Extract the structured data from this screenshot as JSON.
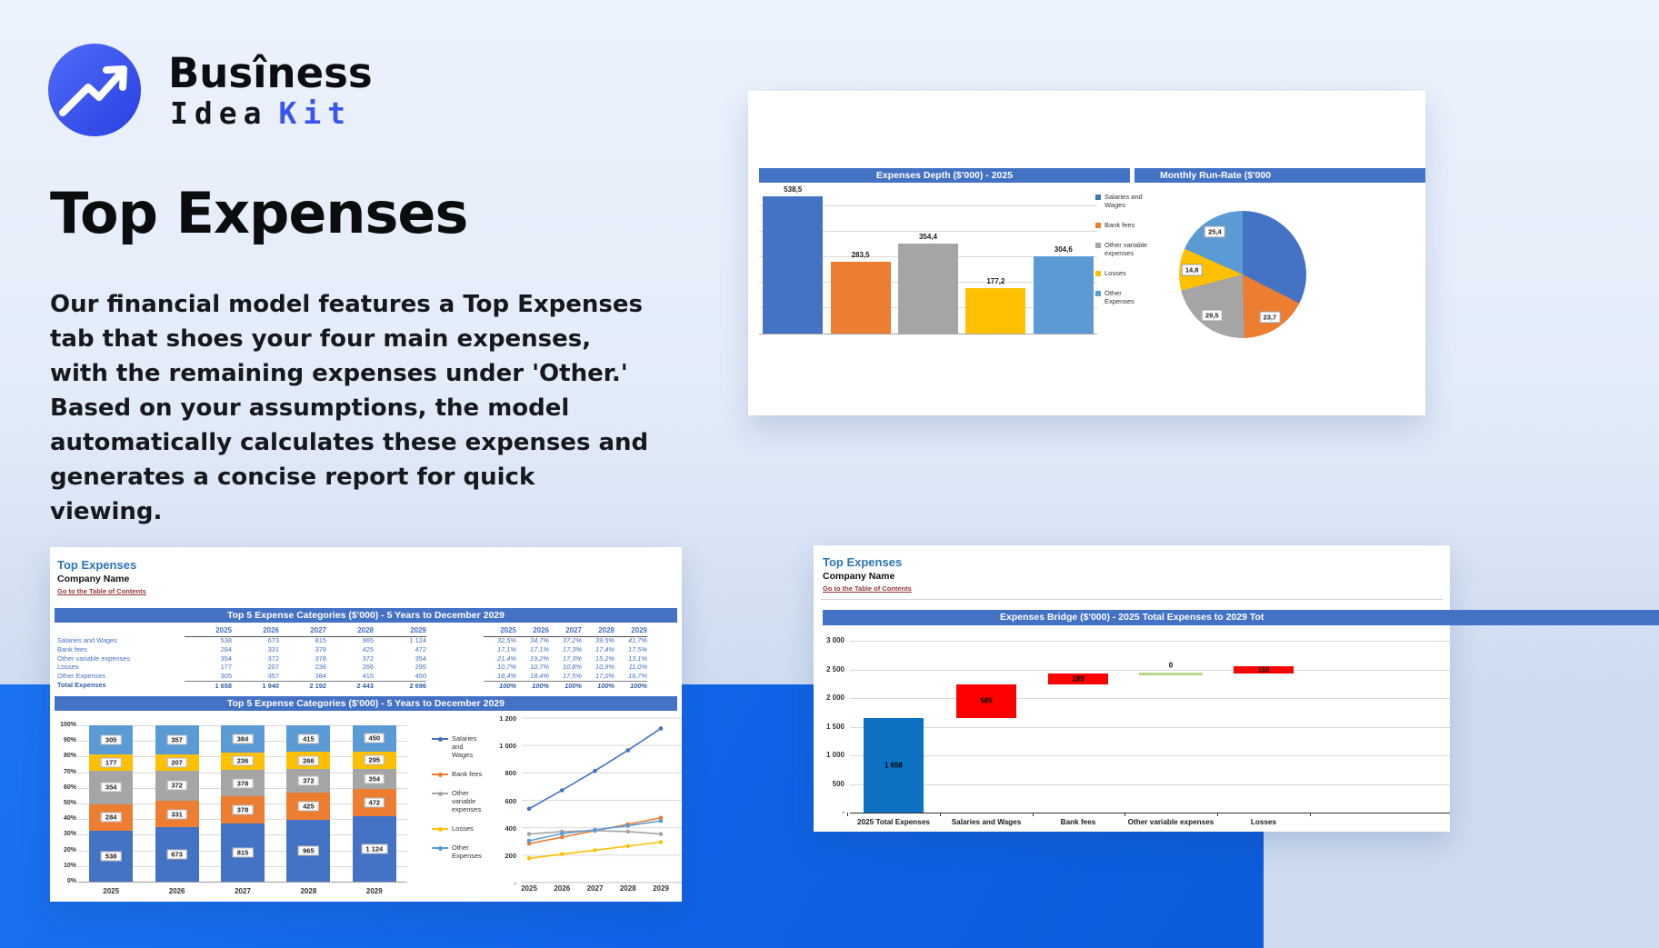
{
  "brand": {
    "line1": "Busîness",
    "line2_dark": "Idea",
    "line2_accent": "Kit"
  },
  "hero": {
    "title": "Top Expenses",
    "paragraph": "Our financial model features a Top Expenses tab that shoes your four main expenses, with the remaining expenses under 'Other.' Based on your assumptions, the model automatically calculates these expenses and generates a concise report for quick viewing."
  },
  "cards": {
    "top_right": {
      "header_left": "Expenses Depth ($'000) - 2025",
      "header_right": "Monthly Run-Rate ($'000"
    },
    "sheet1": {
      "title": "Top Expenses",
      "company": "Company Name",
      "link": "Go to the Table of Contents",
      "table_header": "Top 5 Expense Categories ($'000) - 5 Years to December 2029",
      "chart_header": "Top 5 Expense Categories ($'000) - 5 Years to December 2029",
      "years": [
        "2025",
        "2026",
        "2027",
        "2028",
        "2029"
      ],
      "rows": [
        {
          "label": "Salaries and Wages",
          "values": [
            "538",
            "673",
            "815",
            "965",
            "1 124"
          ],
          "pcts": [
            "32,5%",
            "34,7%",
            "37,2%",
            "39,5%",
            "41,7%"
          ]
        },
        {
          "label": "Bank fees",
          "values": [
            "284",
            "331",
            "378",
            "425",
            "472"
          ],
          "pcts": [
            "17,1%",
            "17,1%",
            "17,3%",
            "17,4%",
            "17,5%"
          ]
        },
        {
          "label": "Other variable expenses",
          "values": [
            "354",
            "372",
            "378",
            "372",
            "354"
          ],
          "pcts": [
            "21,4%",
            "19,2%",
            "17,3%",
            "15,2%",
            "13,1%"
          ]
        },
        {
          "label": "Losses",
          "values": [
            "177",
            "207",
            "236",
            "266",
            "295"
          ],
          "pcts": [
            "10,7%",
            "10,7%",
            "10,8%",
            "10,9%",
            "11,0%"
          ]
        },
        {
          "label": "Other Expenses",
          "values": [
            "305",
            "357",
            "384",
            "415",
            "450"
          ],
          "pcts": [
            "18,4%",
            "18,4%",
            "17,5%",
            "17,0%",
            "16,7%"
          ]
        }
      ],
      "total": {
        "label": "Total Expenses",
        "values": [
          "1 658",
          "1 940",
          "2 192",
          "2 443",
          "2 696"
        ],
        "pcts": [
          "100%",
          "100%",
          "100%",
          "100%",
          "100%"
        ]
      }
    },
    "sheet2": {
      "title": "Top Expenses",
      "company": "Company Name",
      "link": "Go to the Table of Contents",
      "chart_header": "Expenses Bridge ($'000) - 2025 Total Expenses to 2029 Tot"
    }
  },
  "colors": {
    "accent": "#3b55f0",
    "band_blue": "#1266e9",
    "header_bar": "#4472c4",
    "sheet_title_blue": "#2e75b6",
    "link_maroon": "#943634",
    "series": {
      "salaries": "#4472c4",
      "bank_fees": "#ed7d31",
      "other_variable": "#a5a5a5",
      "losses": "#ffc000",
      "other_expenses": "#5b9bd5"
    },
    "waterfall": {
      "start": "#0d72c4",
      "increase": "#fe0000",
      "zero": "#b9d78a"
    }
  },
  "chart_data": [
    {
      "id": "expenses_depth",
      "type": "bar",
      "title": "Expenses Depth ($'000) - 2025",
      "categories": [
        "Salaries and Wages",
        "Bank fees",
        "Other variable expenses",
        "Losses",
        "Other Expenses"
      ],
      "values": [
        538.5,
        283.5,
        354.4,
        177.2,
        304.6
      ],
      "labels": [
        "538,5",
        "283,5",
        "354,4",
        "177,2",
        "304,6"
      ],
      "color_keys": [
        "salaries",
        "bank_fees",
        "other_variable",
        "losses",
        "other_expenses"
      ],
      "ylim": [
        0,
        560
      ],
      "grid_step": 100,
      "legend_position": "right",
      "legend": [
        "Salaries and Wages",
        "Bank fees",
        "Other variable expenses",
        "Losses",
        "Other Expenses"
      ]
    },
    {
      "id": "monthly_run_rate",
      "type": "pie",
      "title": "Monthly Run-Rate ($'000",
      "categories": [
        "Salaries and Wages",
        "Bank fees",
        "Other variable expenses",
        "Losses",
        "Other Expenses"
      ],
      "values": [
        44.9,
        23.7,
        29.5,
        14.8,
        25.4
      ],
      "labels": [
        "",
        "23,7",
        "29,5",
        "14,8",
        "25,4"
      ],
      "color_keys": [
        "salaries",
        "bank_fees",
        "other_variable",
        "losses",
        "other_expenses"
      ]
    },
    {
      "id": "top5_stacked",
      "type": "bar",
      "stacked": true,
      "percent_axis": true,
      "title": "Top 5 Expense Categories ($'000) - 5 Years to December 2029",
      "categories": [
        "2025",
        "2026",
        "2027",
        "2028",
        "2029"
      ],
      "totals": [
        1658,
        1940,
        2192,
        2443,
        2696
      ],
      "series": [
        {
          "name": "Salaries and Wages",
          "color_key": "salaries",
          "values": [
            538,
            673,
            815,
            965,
            1124
          ],
          "labels": [
            "538",
            "673",
            "815",
            "965",
            "1 124"
          ]
        },
        {
          "name": "Bank fees",
          "color_key": "bank_fees",
          "values": [
            284,
            331,
            378,
            425,
            472
          ],
          "labels": [
            "284",
            "331",
            "378",
            "425",
            "472"
          ]
        },
        {
          "name": "Other variable expenses",
          "color_key": "other_variable",
          "values": [
            354,
            372,
            378,
            372,
            354
          ],
          "labels": [
            "354",
            "372",
            "378",
            "372",
            "354"
          ]
        },
        {
          "name": "Losses",
          "color_key": "losses",
          "values": [
            177,
            207,
            236,
            266,
            295
          ],
          "labels": [
            "177",
            "207",
            "236",
            "266",
            "295"
          ]
        },
        {
          "name": "Other Expenses",
          "color_key": "other_expenses",
          "values": [
            305,
            357,
            384,
            415,
            450
          ],
          "labels": [
            "305",
            "357",
            "384",
            "415",
            "450"
          ]
        }
      ],
      "yticks": [
        "0%",
        "10%",
        "20%",
        "30%",
        "40%",
        "50%",
        "60%",
        "70%",
        "80%",
        "90%",
        "100%"
      ],
      "legend": [
        "Salaries and Wages",
        "Bank fees",
        "Other variable expenses",
        "Losses",
        "Other Expenses"
      ],
      "legend_position": "right"
    },
    {
      "id": "top5_lines",
      "type": "line",
      "x": [
        "2025",
        "2026",
        "2027",
        "2028",
        "2029"
      ],
      "series": [
        {
          "name": "Salaries and Wages",
          "color_key": "salaries",
          "values": [
            538,
            673,
            815,
            965,
            1124
          ]
        },
        {
          "name": "Bank fees",
          "color_key": "bank_fees",
          "values": [
            284,
            331,
            378,
            425,
            472
          ]
        },
        {
          "name": "Other variable expenses",
          "color_key": "other_variable",
          "values": [
            354,
            372,
            378,
            372,
            354
          ]
        },
        {
          "name": "Losses",
          "color_key": "losses",
          "values": [
            177,
            207,
            236,
            266,
            295
          ]
        },
        {
          "name": "Other Expenses",
          "color_key": "other_expenses",
          "values": [
            305,
            357,
            384,
            415,
            450
          ]
        }
      ],
      "ylim": [
        0,
        1200
      ],
      "yticks": [
        "-",
        "200",
        "400",
        "600",
        "800",
        "1 000",
        "1 200"
      ]
    },
    {
      "id": "expenses_bridge",
      "type": "waterfall",
      "title": "Expenses Bridge ($'000) - 2025 Total Expenses to 2029 Tot",
      "categories": [
        "2025 Total Expenses",
        "Salaries and Wages",
        "Bank fees",
        "Other variable expenses",
        "Losses"
      ],
      "steps": [
        {
          "label": "1 658",
          "start": 0,
          "end": 1658,
          "color_key": "start",
          "style": "bar"
        },
        {
          "label": "585",
          "start": 1658,
          "end": 2243,
          "color_key": "increase",
          "style": "bar"
        },
        {
          "label": "189",
          "start": 2243,
          "end": 2432,
          "color_key": "increase",
          "style": "bar"
        },
        {
          "label": "0",
          "start": 2432,
          "end": 2432,
          "color_key": "zero",
          "style": "line"
        },
        {
          "label": "118",
          "start": 2432,
          "end": 2550,
          "color_key": "increase",
          "style": "bar"
        }
      ],
      "ylim": [
        0,
        3000
      ],
      "yticks": [
        "-",
        "500",
        "1 000",
        "1 500",
        "2 000",
        "2 500",
        "3 000"
      ]
    }
  ]
}
